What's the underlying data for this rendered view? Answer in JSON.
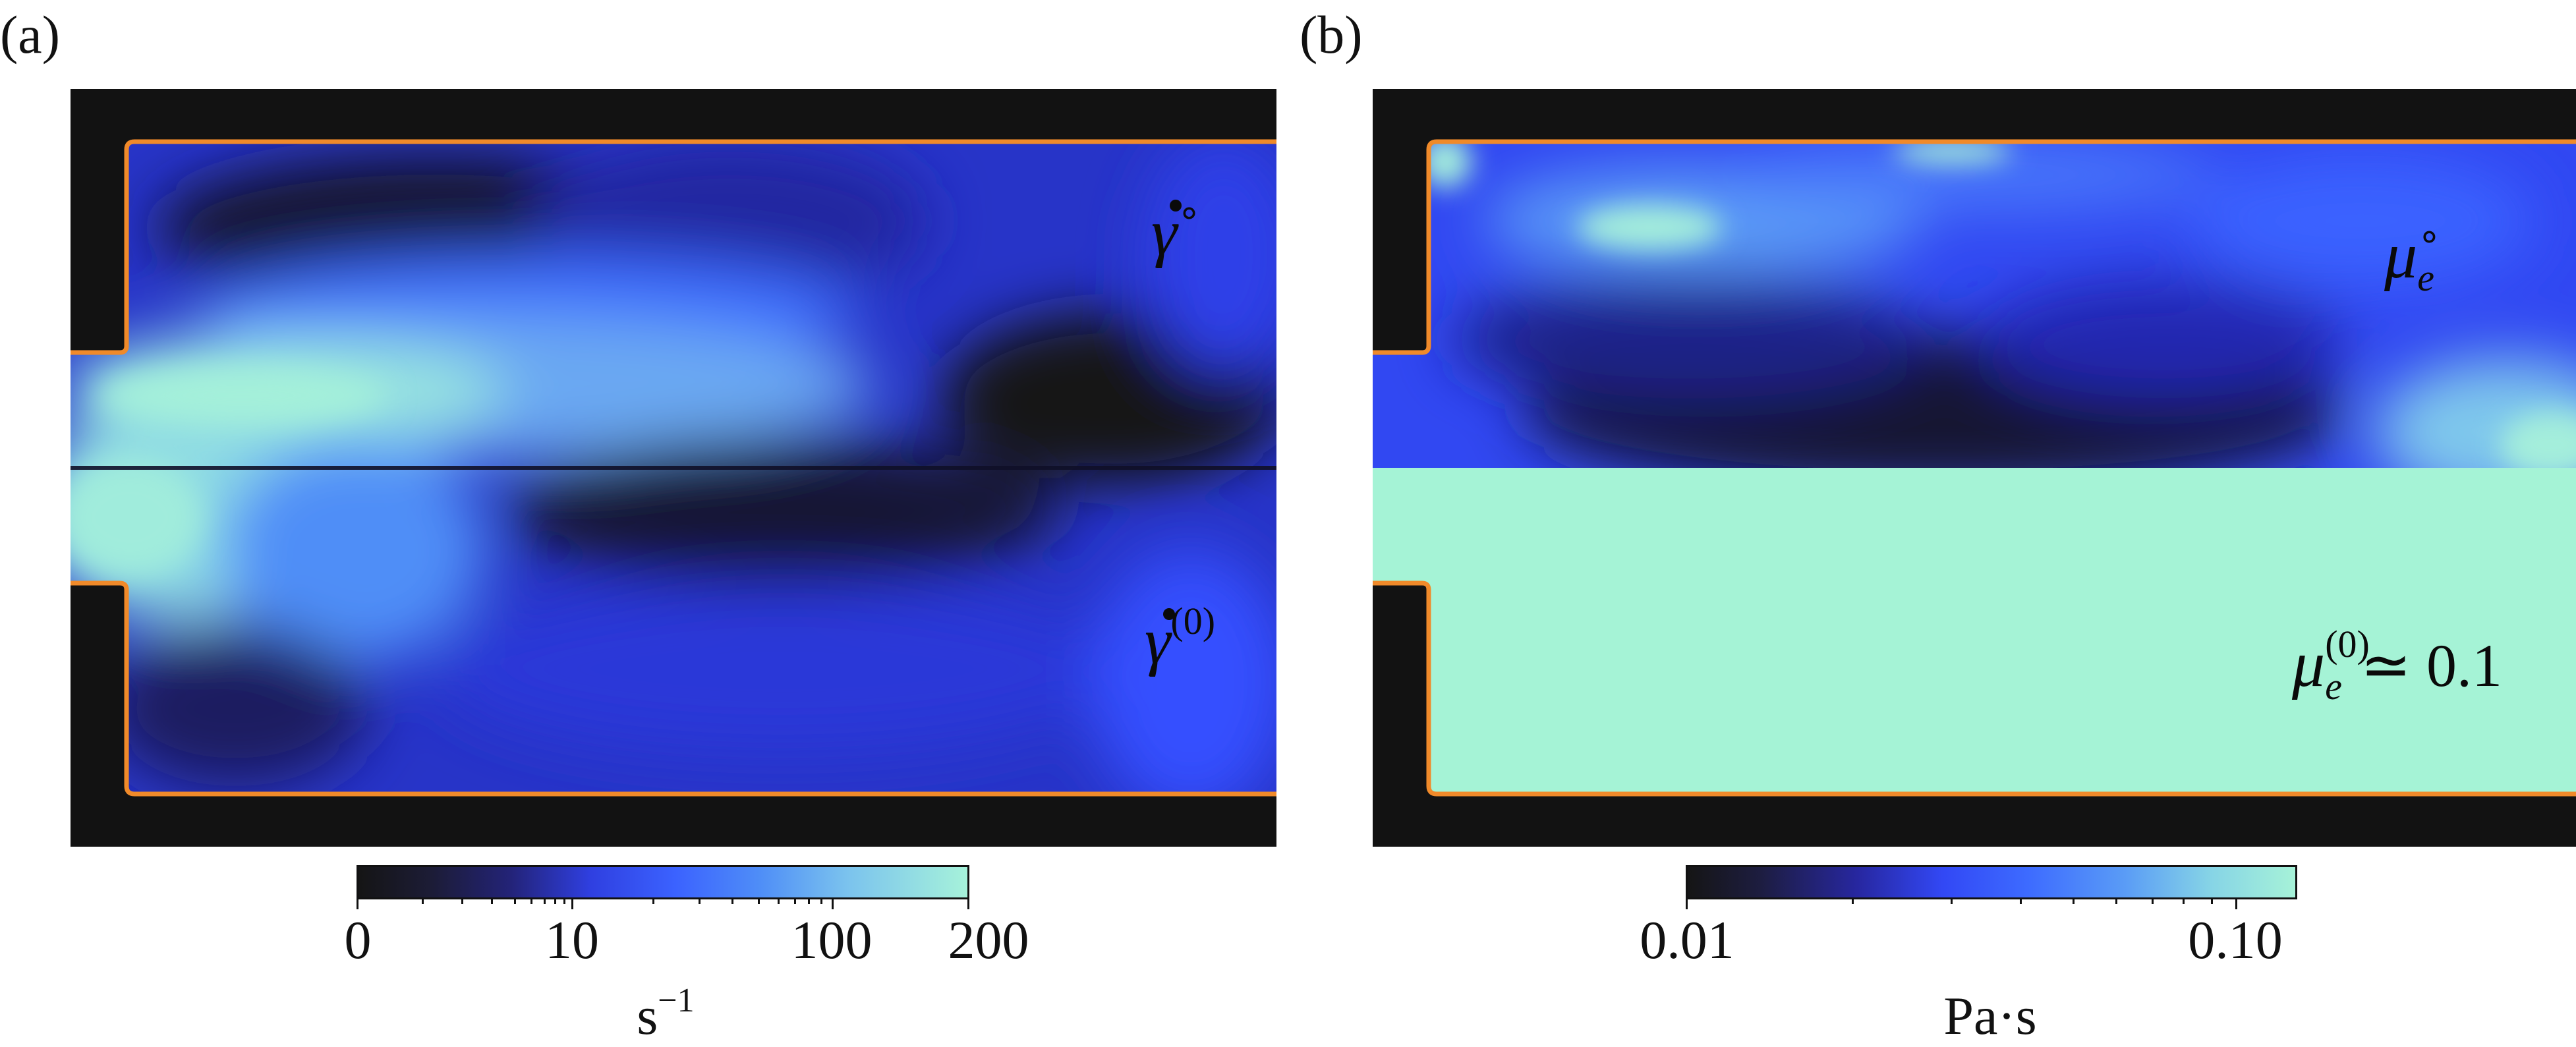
{
  "figure": {
    "panel_a": {
      "label": "(a)",
      "symbol_upper": "γ̇°",
      "symbol_upper_base": "γ",
      "symbol_upper_sup": "∘",
      "symbol_lower_base": "γ",
      "symbol_lower_sup": "(0)",
      "colorbar": {
        "tick_labels": [
          "0",
          "10",
          "100",
          "200"
        ],
        "unit_base": "s",
        "unit_exp": "−1"
      }
    },
    "panel_b": {
      "label": "(b)",
      "symbol_upper_base": "μ",
      "symbol_upper_sup": "∘",
      "symbol_upper_sub": "e",
      "symbol_lower_base": "μ",
      "symbol_lower_sup": "(0)",
      "symbol_lower_sub": "e",
      "symbol_lower_value": "≃ 0.1",
      "colorbar": {
        "tick_labels": [
          "0.01",
          "0.10"
        ],
        "unit": "Pa·s"
      }
    },
    "colors": {
      "boundary": "#f08a2a",
      "background": "#121212",
      "colormap_low": "#151515",
      "colormap_mid": "#3b62ff",
      "colormap_high": "#a6f2da"
    }
  }
}
